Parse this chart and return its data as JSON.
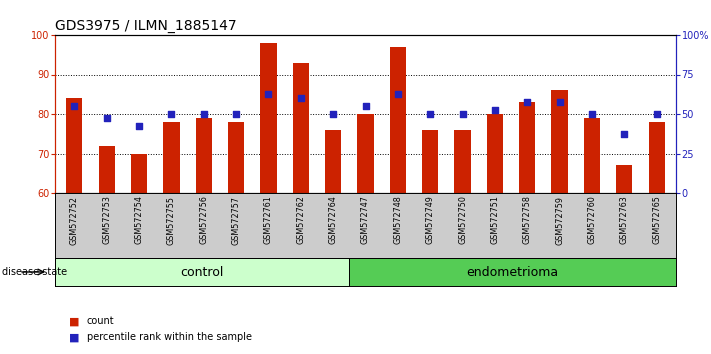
{
  "title": "GDS3975 / ILMN_1885147",
  "samples": [
    "GSM572752",
    "GSM572753",
    "GSM572754",
    "GSM572755",
    "GSM572756",
    "GSM572757",
    "GSM572761",
    "GSM572762",
    "GSM572764",
    "GSM572747",
    "GSM572748",
    "GSM572749",
    "GSM572750",
    "GSM572751",
    "GSM572758",
    "GSM572759",
    "GSM572760",
    "GSM572763",
    "GSM572765"
  ],
  "bar_values": [
    84,
    72,
    70,
    78,
    79,
    78,
    98,
    93,
    76,
    80,
    97,
    76,
    76,
    80,
    83,
    86,
    79,
    67,
    78
  ],
  "dot_values_left_scale": [
    82,
    79,
    77,
    80,
    80,
    80,
    85,
    84,
    80,
    82,
    85,
    80,
    80,
    81,
    83,
    83,
    80,
    75,
    80
  ],
  "group_labels": [
    "control",
    "endometrioma"
  ],
  "group_sizes": [
    9,
    10
  ],
  "ylim_left": [
    60,
    100
  ],
  "yticks_left": [
    60,
    70,
    80,
    90,
    100
  ],
  "ytick_labels_right": [
    "0",
    "25",
    "50",
    "75",
    "100%"
  ],
  "bar_color": "#cc2200",
  "dot_color": "#2222bb",
  "bar_width": 0.5,
  "bg_xtick": "#cccccc",
  "bg_group_control": "#ccffcc",
  "bg_group_endometrioma": "#55cc55",
  "legend_count_label": "count",
  "legend_dot_label": "percentile rank within the sample",
  "disease_state_label": "disease state",
  "title_fontsize": 10,
  "tick_fontsize": 7,
  "group_fontsize": 9
}
